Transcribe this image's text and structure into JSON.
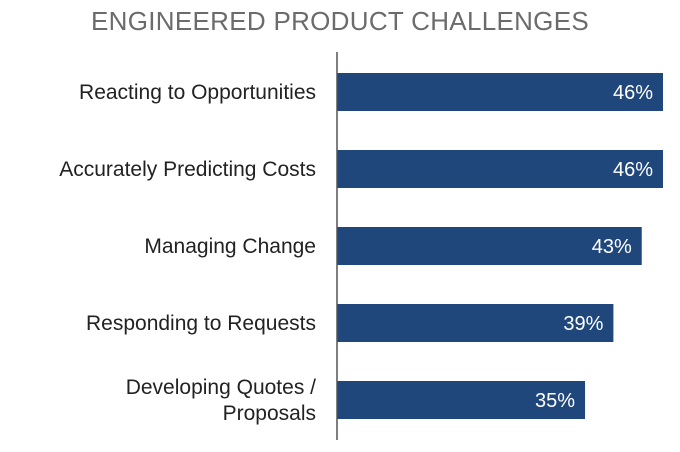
{
  "chart_data": {
    "type": "bar",
    "orientation": "horizontal",
    "title": "ENGINEERED PRODUCT CHALLENGES",
    "categories": [
      [
        "Reacting to Opportunities"
      ],
      [
        "Accurately Predicting Costs"
      ],
      [
        "Managing Change"
      ],
      [
        "Responding to Requests"
      ],
      [
        "Developing Quotes /",
        "Proposals"
      ]
    ],
    "values": [
      46,
      46,
      43,
      39,
      35
    ],
    "value_labels": [
      "46%",
      "46%",
      "43%",
      "39%",
      "35%"
    ],
    "xlim": [
      0,
      46
    ],
    "grid": false,
    "legend": "none",
    "bar_color": "#1f477c",
    "axis_color": "#555555"
  }
}
